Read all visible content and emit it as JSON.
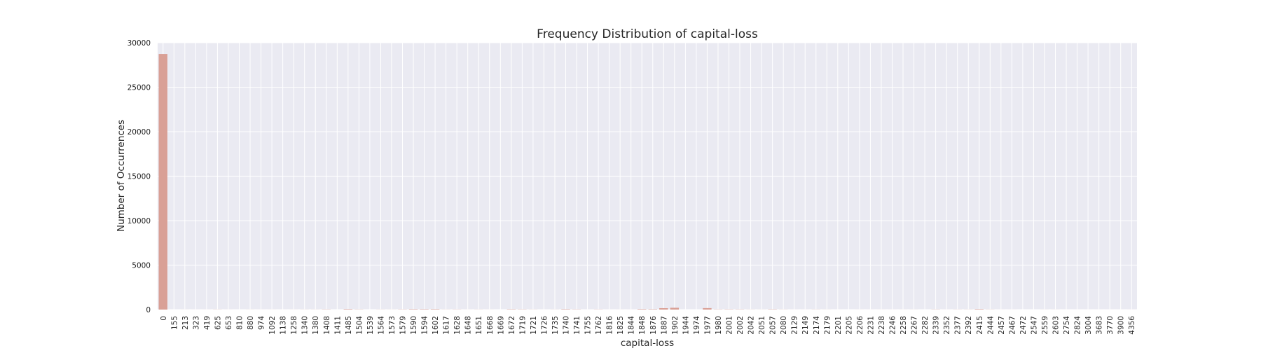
{
  "chart_data": {
    "type": "bar",
    "title": "Frequency Distribution of capital-loss",
    "xlabel": "capital-loss",
    "ylabel": "Number of Occurrences",
    "ylim": [
      0,
      30000
    ],
    "yticks": [
      0,
      5000,
      10000,
      15000,
      20000,
      25000,
      30000
    ],
    "grid": true,
    "legend": "none",
    "colors": {
      "bar": "#d9a096",
      "plot_bg": "#eaeaf2",
      "grid": "#ffffff"
    },
    "categories": [
      "0",
      "155",
      "213",
      "323",
      "419",
      "625",
      "653",
      "810",
      "880",
      "974",
      "1092",
      "1138",
      "1258",
      "1340",
      "1380",
      "1408",
      "1411",
      "1485",
      "1504",
      "1539",
      "1564",
      "1573",
      "1579",
      "1590",
      "1594",
      "1602",
      "1617",
      "1628",
      "1648",
      "1651",
      "1668",
      "1669",
      "1672",
      "1719",
      "1721",
      "1726",
      "1735",
      "1740",
      "1741",
      "1755",
      "1762",
      "1816",
      "1825",
      "1844",
      "1848",
      "1876",
      "1887",
      "1902",
      "1944",
      "1974",
      "1977",
      "1980",
      "2001",
      "2002",
      "2042",
      "2051",
      "2057",
      "2080",
      "2129",
      "2149",
      "2174",
      "2179",
      "2201",
      "2205",
      "2206",
      "2231",
      "2238",
      "2246",
      "2258",
      "2267",
      "2282",
      "2339",
      "2352",
      "2377",
      "2392",
      "2415",
      "2444",
      "2457",
      "2467",
      "2472",
      "2547",
      "2559",
      "2603",
      "2754",
      "2824",
      "3004",
      "3683",
      "3770",
      "3900",
      "4356"
    ],
    "values": [
      28735,
      1,
      4,
      3,
      3,
      12,
      3,
      1,
      6,
      3,
      4,
      2,
      4,
      7,
      7,
      21,
      1,
      51,
      18,
      1,
      9,
      6,
      20,
      42,
      40,
      47,
      9,
      15,
      4,
      9,
      4,
      1,
      34,
      22,
      9,
      2,
      8,
      42,
      21,
      2,
      15,
      2,
      4,
      3,
      51,
      39,
      159,
      202,
      1,
      1,
      168,
      20,
      24,
      21,
      9,
      6,
      28,
      9,
      3,
      3,
      12,
      6,
      2,
      1,
      4,
      3,
      4,
      3,
      4,
      5,
      1,
      17,
      3,
      10,
      9,
      49,
      12,
      3,
      3,
      1,
      1,
      5,
      5,
      2,
      2,
      2,
      2,
      2,
      2,
      3
    ]
  }
}
